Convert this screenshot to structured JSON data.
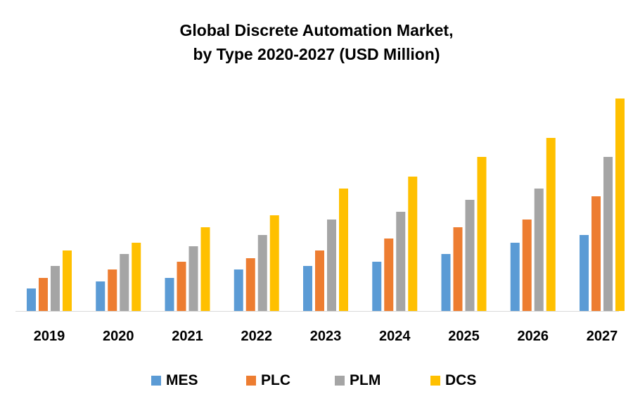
{
  "chart_data": {
    "type": "bar",
    "title": "Global Discrete Automation Market, by Type 2020-2027 (USD Million)",
    "title_lines": [
      "Global Discrete Automation Market,",
      "by Type 2020-2027 (USD Million)"
    ],
    "categories": [
      "2019",
      "2020",
      "2021",
      "2022",
      "2023",
      "2024",
      "2025",
      "2026",
      "2027"
    ],
    "series": [
      {
        "name": "MES",
        "color": "#5B9BD5",
        "values": [
          32,
          42,
          47,
          59,
          64,
          70,
          81,
          97,
          108
        ]
      },
      {
        "name": "PLC",
        "color": "#ED7D31",
        "values": [
          47,
          59,
          70,
          75,
          86,
          103,
          119,
          130,
          163
        ]
      },
      {
        "name": "PLM",
        "color": "#A5A5A5",
        "values": [
          64,
          81,
          92,
          108,
          130,
          141,
          158,
          174,
          219
        ]
      },
      {
        "name": "DCS",
        "color": "#FFC000",
        "values": [
          86,
          97,
          119,
          136,
          174,
          191,
          219,
          246,
          302
        ]
      }
    ],
    "xlabel": "",
    "ylabel": "",
    "y_axis_shown": false,
    "grid": false,
    "legend": "bottom"
  }
}
